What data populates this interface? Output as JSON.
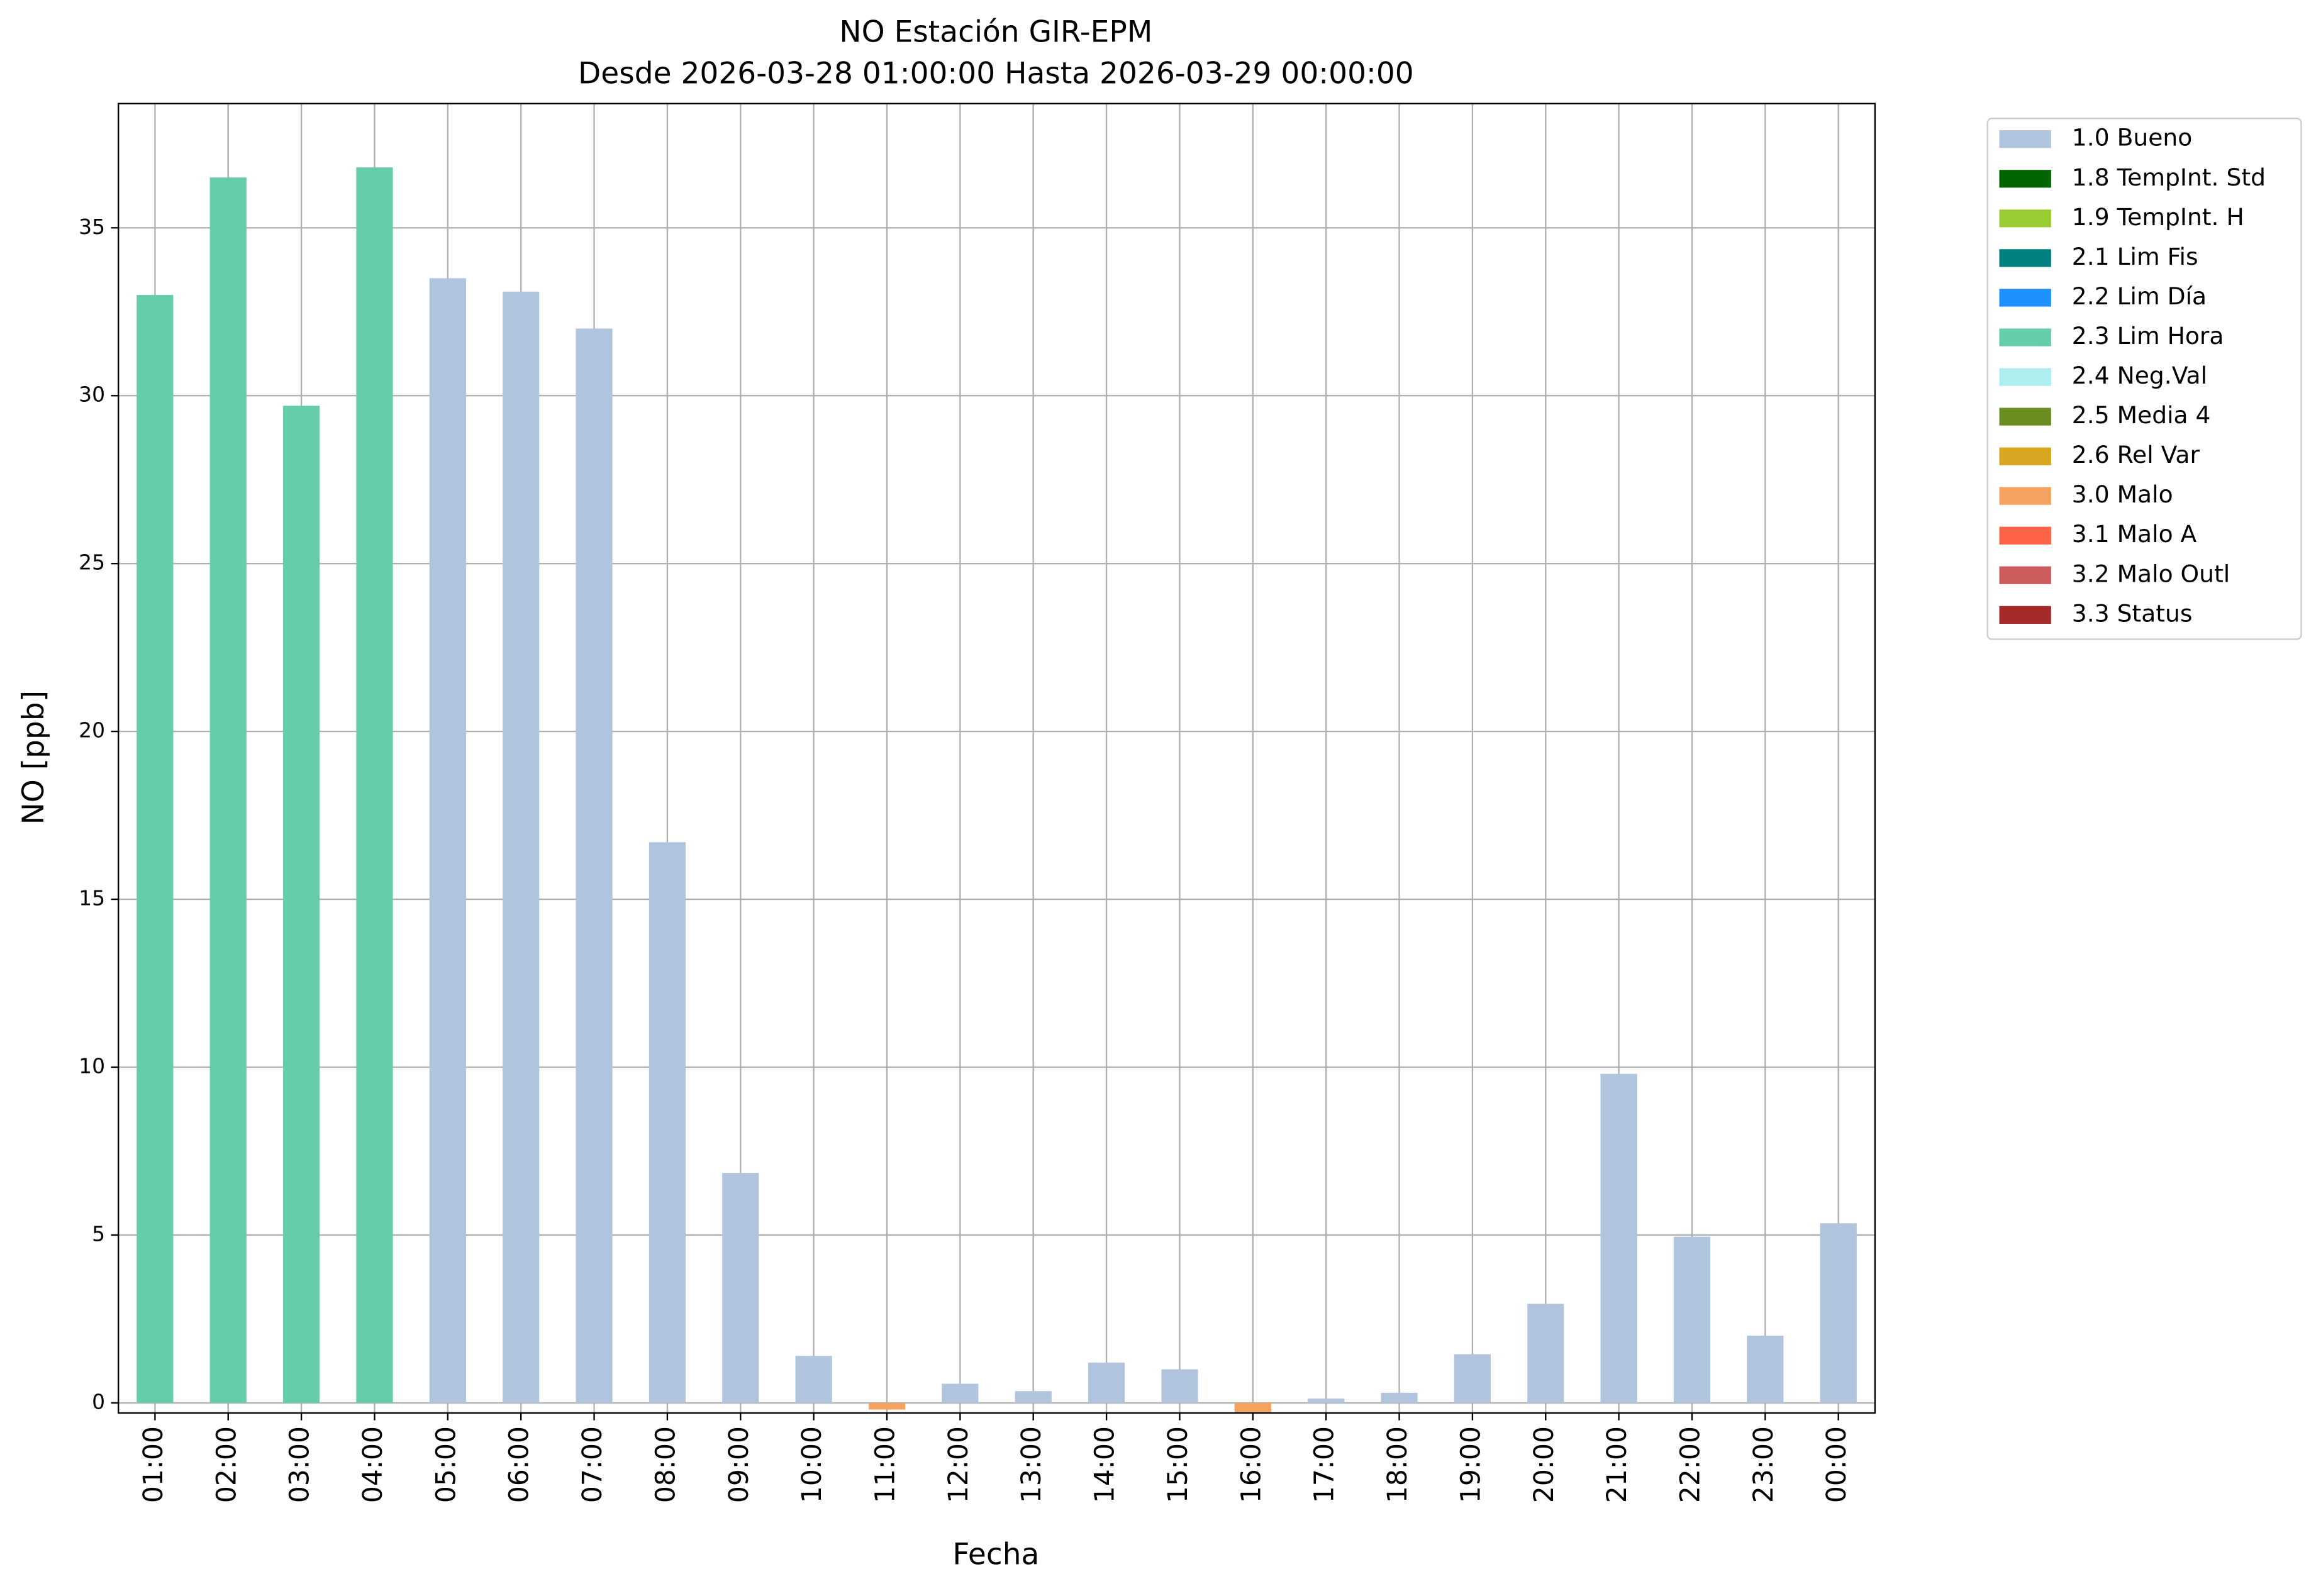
{
  "chart_data": {
    "type": "bar",
    "title": "NO Estación GIR-EPM",
    "subtitle": "Desde 2026-03-28 01:00:00 Hasta 2026-03-29 00:00:00",
    "x_label": "Fecha",
    "y_label": "NO [ppb]",
    "categories": [
      "01:00",
      "02:00",
      "03:00",
      "04:00",
      "05:00",
      "06:00",
      "07:00",
      "08:00",
      "09:00",
      "10:00",
      "11:00",
      "12:00",
      "13:00",
      "14:00",
      "15:00",
      "16:00",
      "17:00",
      "18:00",
      "19:00",
      "20:00",
      "21:00",
      "22:00",
      "23:00",
      "00:00"
    ],
    "series": [
      {
        "name": "1.0 Bueno",
        "color": "#b0c4de",
        "values": [
          null,
          null,
          null,
          null,
          33.5,
          33.1,
          32.0,
          16.7,
          6.85,
          1.4,
          null,
          0.57,
          0.35,
          1.2,
          1.0,
          null,
          0.13,
          0.3,
          1.45,
          2.95,
          9.8,
          4.95,
          2.0,
          5.35
        ]
      },
      {
        "name": "1.8 TempInt. Std",
        "color": "#006400",
        "values": [
          null,
          null,
          null,
          null,
          null,
          null,
          null,
          null,
          null,
          null,
          null,
          null,
          null,
          null,
          null,
          null,
          null,
          null,
          null,
          null,
          null,
          null,
          null,
          null
        ]
      },
      {
        "name": "1.9 TempInt. H",
        "color": "#9acd32",
        "values": [
          null,
          null,
          null,
          null,
          null,
          null,
          null,
          null,
          null,
          null,
          null,
          null,
          null,
          null,
          null,
          null,
          null,
          null,
          null,
          null,
          null,
          null,
          null,
          null
        ]
      },
      {
        "name": "2.1 Lim Fis",
        "color": "#008080",
        "values": [
          null,
          null,
          null,
          null,
          null,
          null,
          null,
          null,
          null,
          null,
          null,
          null,
          null,
          null,
          null,
          null,
          null,
          null,
          null,
          null,
          null,
          null,
          null,
          null
        ]
      },
      {
        "name": "2.2 Lim Día",
        "color": "#1e90ff",
        "values": [
          null,
          null,
          null,
          null,
          null,
          null,
          null,
          null,
          null,
          null,
          null,
          null,
          null,
          null,
          null,
          null,
          null,
          null,
          null,
          null,
          null,
          null,
          null,
          null
        ]
      },
      {
        "name": "2.3 Lim Hora",
        "color": "#66cdaa",
        "values": [
          33.0,
          36.5,
          29.7,
          36.8,
          null,
          null,
          null,
          null,
          null,
          null,
          null,
          null,
          null,
          null,
          null,
          null,
          null,
          null,
          null,
          null,
          null,
          null,
          null,
          null
        ]
      },
      {
        "name": "2.4 Neg.Val",
        "color": "#afeeee",
        "values": [
          null,
          null,
          null,
          null,
          null,
          null,
          null,
          null,
          null,
          null,
          null,
          null,
          null,
          null,
          null,
          null,
          null,
          null,
          null,
          null,
          null,
          null,
          null,
          null
        ]
      },
      {
        "name": "2.5 Media 4",
        "color": "#6b8e23",
        "values": [
          null,
          null,
          null,
          null,
          null,
          null,
          null,
          null,
          null,
          null,
          null,
          null,
          null,
          null,
          null,
          null,
          null,
          null,
          null,
          null,
          null,
          null,
          null,
          null
        ]
      },
      {
        "name": "2.6 Rel Var",
        "color": "#daa520",
        "values": [
          null,
          null,
          null,
          null,
          null,
          null,
          null,
          null,
          null,
          null,
          null,
          null,
          null,
          null,
          null,
          null,
          null,
          null,
          null,
          null,
          null,
          null,
          null,
          null
        ]
      },
      {
        "name": "3.0 Malo",
        "color": "#f4a460",
        "values": [
          null,
          null,
          null,
          null,
          null,
          null,
          null,
          null,
          null,
          null,
          -0.2,
          null,
          null,
          null,
          null,
          -0.3,
          null,
          null,
          null,
          null,
          null,
          null,
          null,
          null
        ]
      },
      {
        "name": "3.1 Malo A",
        "color": "#ff6347",
        "values": [
          null,
          null,
          null,
          null,
          null,
          null,
          null,
          null,
          null,
          null,
          null,
          null,
          null,
          null,
          null,
          null,
          null,
          null,
          null,
          null,
          null,
          null,
          null,
          null
        ]
      },
      {
        "name": "3.2 Malo Outl",
        "color": "#cd5c5c",
        "values": [
          null,
          null,
          null,
          null,
          null,
          null,
          null,
          null,
          null,
          null,
          null,
          null,
          null,
          null,
          null,
          null,
          null,
          null,
          null,
          null,
          null,
          null,
          null,
          null
        ]
      },
      {
        "name": "3.3 Status",
        "color": "#a52a2a",
        "values": [
          null,
          null,
          null,
          null,
          null,
          null,
          null,
          null,
          null,
          null,
          null,
          null,
          null,
          null,
          null,
          null,
          null,
          null,
          null,
          null,
          null,
          null,
          null,
          null
        ]
      }
    ],
    "ylim": [
      -0.3,
      38.7
    ],
    "yticks": [
      0,
      5,
      10,
      15,
      20,
      25,
      30,
      35
    ],
    "grid": true,
    "legend": "outside right"
  }
}
